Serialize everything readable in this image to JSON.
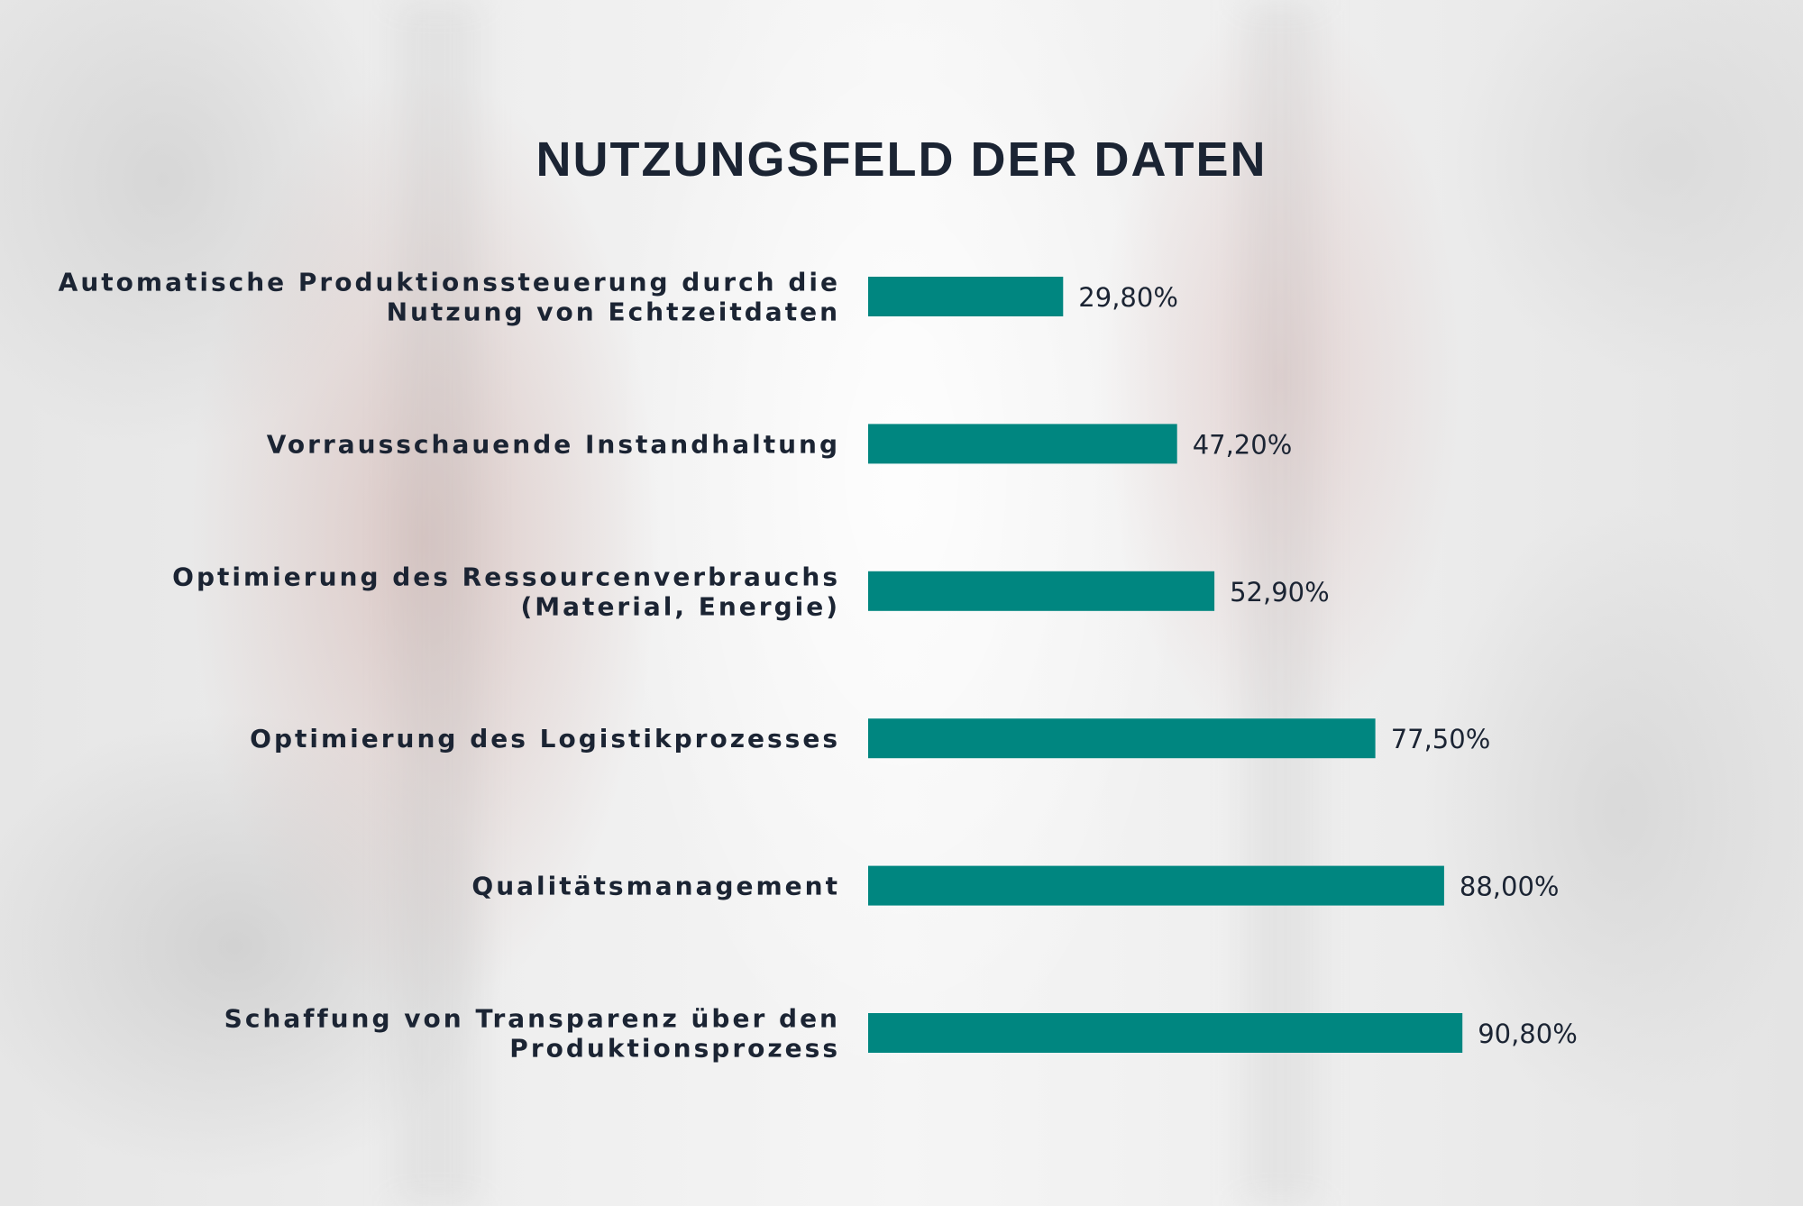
{
  "chart_data": {
    "type": "bar",
    "orientation": "horizontal",
    "title": "NUTZUNGSFELD DER DATEN",
    "categories": [
      [
        "Automatische Produktionssteuerung durch die",
        "Nutzung von Echtzeitdaten"
      ],
      [
        "Vorrausschauende Instandhaltung"
      ],
      [
        "Optimierung des Ressourcenverbrauchs",
        "(Material, Energie)"
      ],
      [
        "Optimierung des Logistikprozesses"
      ],
      [
        "Qualitätsmanagement"
      ],
      [
        "Schaffung von Transparenz über den",
        "Produktionsprozess"
      ]
    ],
    "values": [
      29.8,
      47.2,
      52.9,
      77.5,
      88.0,
      90.8
    ],
    "value_labels": [
      "29,80%",
      "47,20%",
      "52,90%",
      "77,50%",
      "88,00%",
      "90,80%"
    ],
    "xlim": [
      0,
      100
    ],
    "grid": false,
    "bar_color": "#008680",
    "text_color": "#1b2433"
  }
}
